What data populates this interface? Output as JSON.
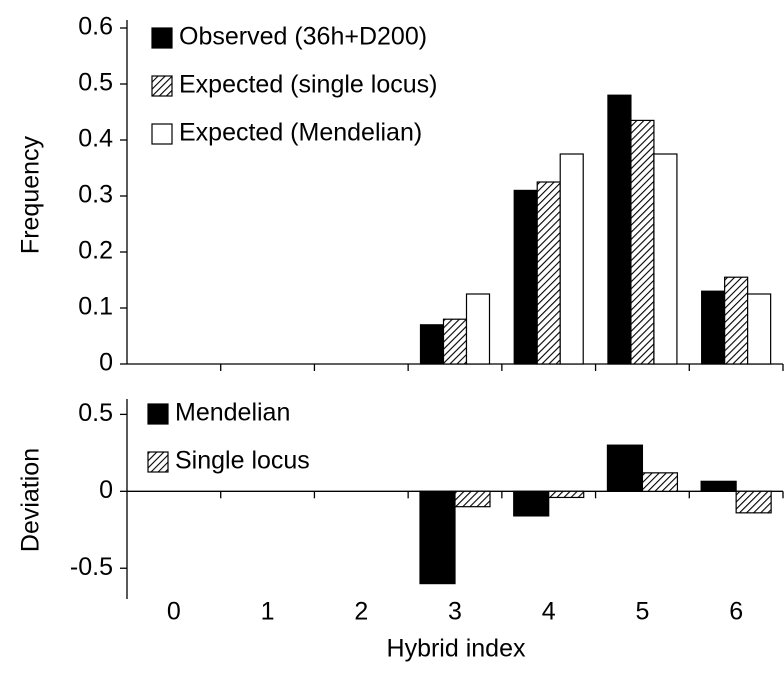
{
  "chart_data": [
    {
      "type": "bar",
      "ylabel": "Frequency",
      "ylim": [
        0,
        0.6
      ],
      "yticks": [
        0,
        0.1,
        0.2,
        0.3,
        0.4,
        0.5,
        0.6
      ],
      "legend": "top-left",
      "series": [
        {
          "name": "Observed (36h+D200)",
          "color": "#000000",
          "values": [
            0,
            0,
            0,
            0.07,
            0.31,
            0.48,
            0.13
          ]
        },
        {
          "name": "Expected (single locus)",
          "color": "#ffffff",
          "pattern": "hatch",
          "values": [
            0,
            0,
            0,
            0.08,
            0.325,
            0.435,
            0.155
          ]
        },
        {
          "name": "Expected (Mendelian)",
          "color": "#ffffff",
          "values": [
            0,
            0,
            0,
            0.125,
            0.375,
            0.375,
            0.125
          ]
        }
      ]
    },
    {
      "type": "bar",
      "ylabel": "Deviation",
      "xlabel": "Hybrid index",
      "categories": [
        "0",
        "1",
        "2",
        "3",
        "4",
        "5",
        "6"
      ],
      "ylim": [
        -0.7,
        0.6
      ],
      "yticks": [
        -0.5,
        0,
        0.5
      ],
      "legend": "top-left",
      "series": [
        {
          "name": "Mendelian",
          "color": "#000000",
          "values": [
            0,
            0,
            0,
            -0.6,
            -0.16,
            0.3,
            0.065
          ]
        },
        {
          "name": "Single locus",
          "color": "#ffffff",
          "pattern": "hatch",
          "values": [
            0,
            0,
            0,
            -0.1,
            -0.04,
            0.12,
            -0.14
          ]
        }
      ]
    }
  ]
}
